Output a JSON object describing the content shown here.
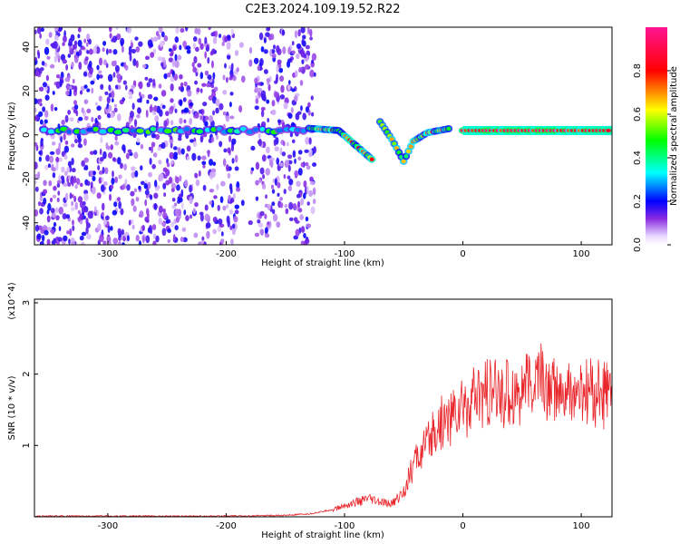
{
  "title": "C2E3.2024.109.19.52.R22",
  "chart_data": [
    {
      "type": "heatmap",
      "title": "C2E3.2024.109.19.52.R22",
      "xlabel": "Height of straight line (km)",
      "ylabel": "Frequency (Hz)",
      "xlim": [
        -362,
        126
      ],
      "ylim": [
        -50,
        49
      ],
      "xticks": [
        -300,
        -200,
        -100,
        0,
        100
      ],
      "yticks": [
        40,
        20,
        0,
        -20,
        -40
      ],
      "colorbar": {
        "label": "Normalized spectral amplitude",
        "range": [
          0.0,
          1.0
        ],
        "ticks": [
          0.0,
          0.2,
          0.4,
          0.6,
          0.8
        ]
      },
      "features": [
        {
          "name": "noise-band",
          "x_range": [
            -362,
            -125
          ],
          "y_range": [
            -50,
            49
          ],
          "intensity": 0.12
        },
        {
          "name": "center-line",
          "x_range": [
            -362,
            -125
          ],
          "freq": 2,
          "intensity": 0.35
        },
        {
          "name": "main-line",
          "x_range": [
            0,
            126
          ],
          "freq": 2,
          "intensity": 0.9
        },
        {
          "name": "descending-trace",
          "points": [
            [
              -130,
              3
            ],
            [
              -105,
              2
            ],
            [
              -90,
              -5
            ],
            [
              -75,
              -12
            ]
          ],
          "intensity": 0.7
        },
        {
          "name": "v-trace",
          "points": [
            [
              -70,
              6
            ],
            [
              -60,
              -2
            ],
            [
              -50,
              -12
            ],
            [
              -42,
              -3
            ],
            [
              -30,
              1
            ],
            [
              -10,
              3
            ]
          ],
          "intensity": 0.6
        }
      ]
    },
    {
      "type": "line",
      "xlabel": "Height of straight line (km)",
      "ylabel": "SNR (10 * v/v)",
      "y_multiplier": "(x10^4)",
      "xlim": [
        -362,
        126
      ],
      "ylim": [
        0,
        3.05
      ],
      "xticks": [
        -300,
        -200,
        -100,
        0,
        100
      ],
      "yticks": [
        1,
        2,
        3
      ],
      "series": [
        {
          "color": "#e8262b",
          "x": [
            -362,
            -300,
            -200,
            -150,
            -130,
            -110,
            -95,
            -80,
            -70,
            -60,
            -50,
            -40,
            -30,
            -20,
            -10,
            0,
            20,
            40,
            50,
            55,
            60,
            65,
            70,
            75,
            80,
            85,
            90,
            95,
            100,
            110,
            126
          ],
          "y": [
            0.01,
            0.01,
            0.01,
            0.02,
            0.04,
            0.1,
            0.18,
            0.25,
            0.2,
            0.18,
            0.35,
            0.8,
            1.0,
            1.3,
            1.4,
            1.55,
            1.7,
            1.75,
            1.8,
            1.85,
            1.8,
            2.1,
            1.75,
            1.85,
            1.7,
            1.65,
            1.75,
            1.7,
            1.72,
            1.74,
            1.7
          ]
        }
      ]
    }
  ]
}
